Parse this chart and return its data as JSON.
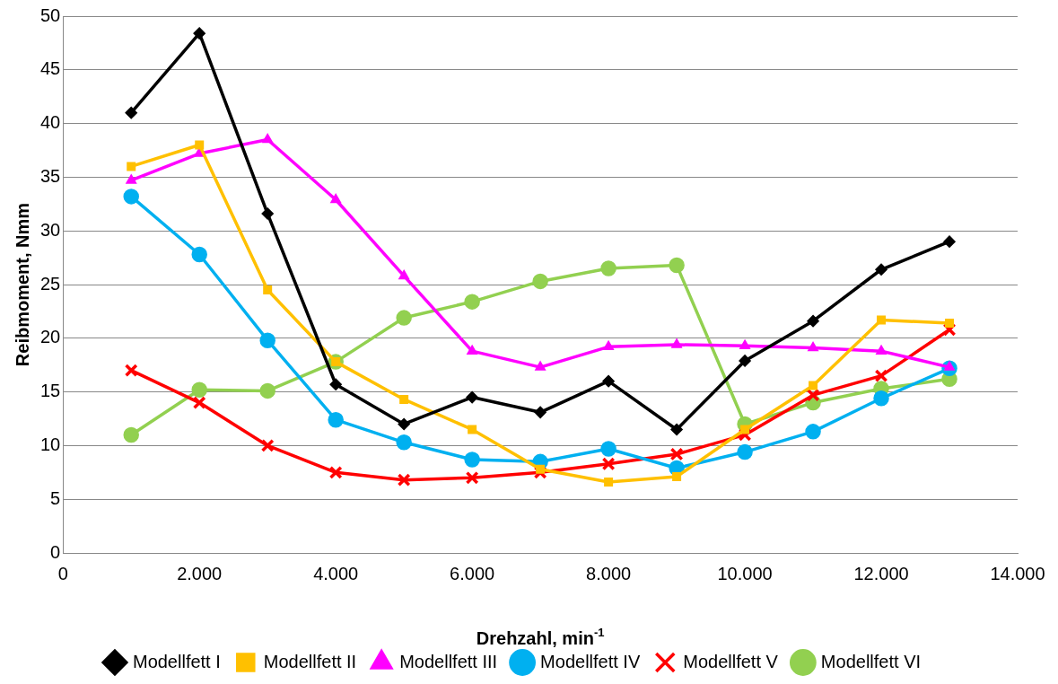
{
  "chart_data": {
    "type": "line",
    "xlabel": "Drehzahl, min$^{-1}$",
    "ylabel": "Reibmoment, Nmm",
    "x": [
      1000,
      2000,
      3000,
      4000,
      5000,
      6000,
      7000,
      8000,
      9000,
      10000,
      11000,
      12000,
      13000
    ],
    "xlim": [
      0,
      14000
    ],
    "xticks": [
      0,
      {
        "value": 2000,
        "label": "2.000"
      },
      {
        "value": 4000,
        "label": "4.000"
      },
      {
        "value": 6000,
        "label": "6.000"
      },
      {
        "value": 8000,
        "label": "8.000"
      },
      {
        "value": 10000,
        "label": "10.000"
      },
      {
        "value": 12000,
        "label": "12.000"
      },
      {
        "value": 14000,
        "label": "14.000"
      }
    ],
    "ylim": [
      0,
      50
    ],
    "yticks": [
      0,
      5,
      10,
      15,
      20,
      25,
      30,
      35,
      40,
      45,
      50
    ],
    "grid": "y",
    "legend": "bottom",
    "series": [
      {
        "name": "Modellfett I",
        "color": "#000000",
        "marker": "diamond",
        "values": [
          41,
          48.4,
          31.6,
          15.7,
          12,
          14.5,
          13.1,
          16,
          11.5,
          17.9,
          21.6,
          26.4,
          29
        ]
      },
      {
        "name": "Modellfett II",
        "color": "#ffc000",
        "marker": "square",
        "values": [
          36,
          38,
          24.5,
          17.8,
          14.3,
          11.5,
          7.8,
          6.6,
          7.1,
          11.5,
          15.6,
          21.7,
          21.4
        ]
      },
      {
        "name": "Modellfett III",
        "color": "#ff00ff",
        "marker": "triangle",
        "values": [
          34.7,
          37.2,
          38.5,
          32.9,
          25.8,
          18.8,
          17.3,
          19.2,
          19.4,
          19.3,
          19.1,
          18.8,
          17.3
        ]
      },
      {
        "name": "Modellfett IV",
        "color": "#00b0f0",
        "marker": "circle",
        "values": [
          33.2,
          27.8,
          19.8,
          12.4,
          10.3,
          8.7,
          8.5,
          9.7,
          7.9,
          9.4,
          11.3,
          14.4,
          17.2
        ]
      },
      {
        "name": "Modellfett V",
        "color": "#ff0000",
        "marker": "cross",
        "values": [
          17,
          14,
          10,
          7.5,
          6.8,
          7,
          7.5,
          8.3,
          9.2,
          11,
          14.7,
          16.5,
          20.8
        ]
      },
      {
        "name": "Modellfett VI",
        "color": "#92d050",
        "marker": "circle",
        "values": [
          11,
          15.2,
          15.1,
          17.8,
          21.9,
          23.4,
          25.3,
          26.5,
          26.8,
          12,
          14,
          15.3,
          16.2
        ]
      }
    ]
  }
}
